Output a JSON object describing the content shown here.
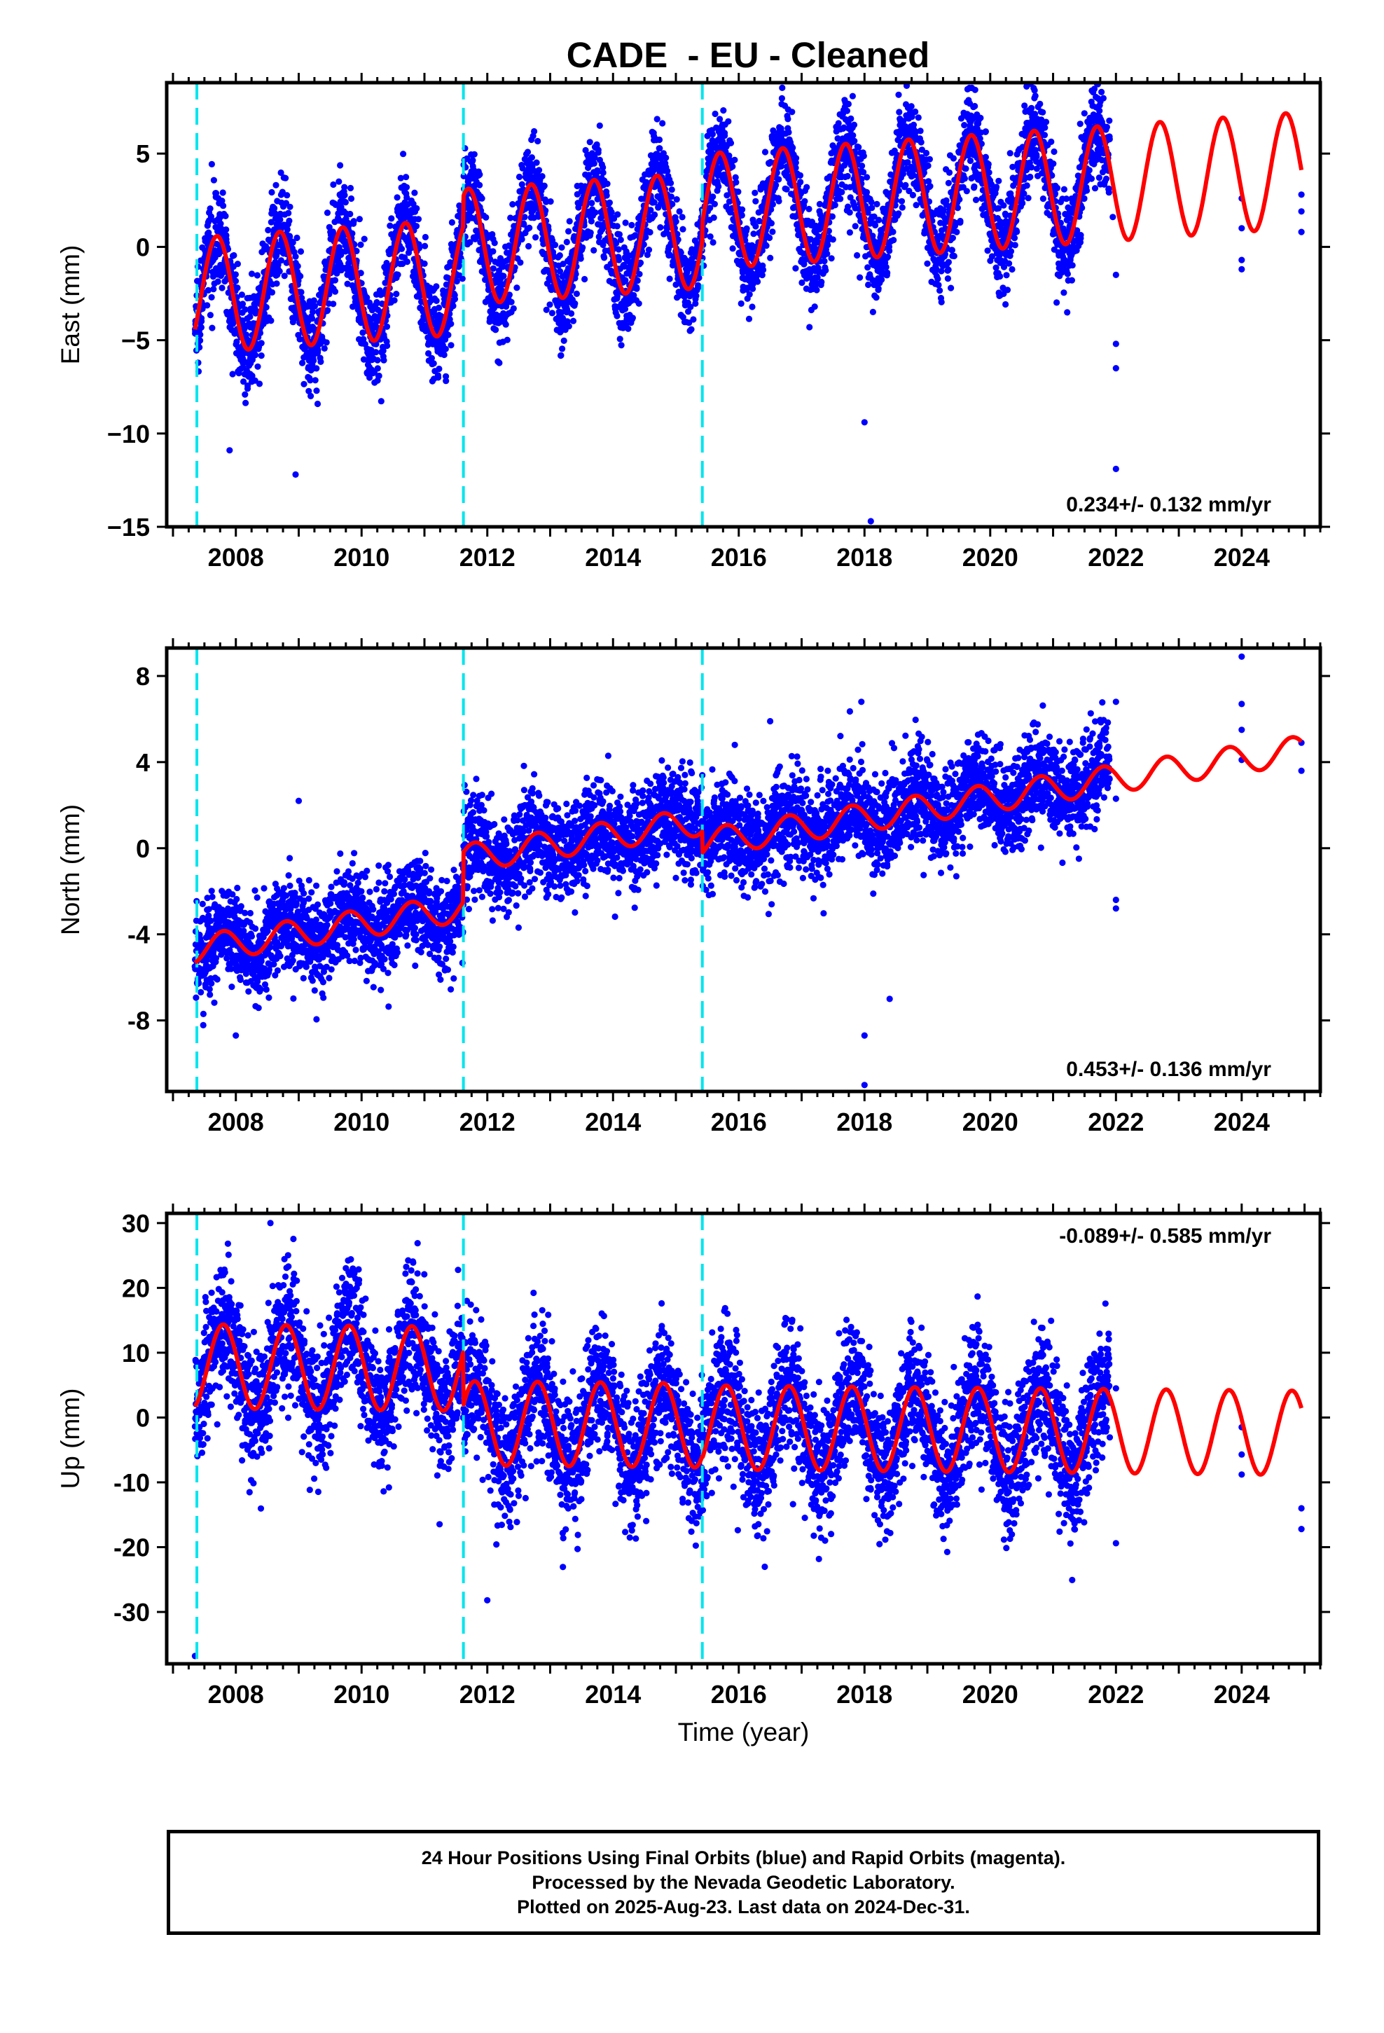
{
  "title": "CADE  - EU - Cleaned",
  "caption": {
    "line1": "24 Hour Positions Using Final Orbits (blue) and Rapid Orbits (magenta).",
    "line2": "Processed by the Nevada Geodetic Laboratory.",
    "line3": "Plotted on 2025-Aug-23. Last data on 2024-Dec-31."
  },
  "colors": {
    "data_points": "#0000ff",
    "model_fit": "#ff0000",
    "event_lines": "#00e5ee",
    "frame": "#000000"
  },
  "chart_data": [
    {
      "type": "scatter",
      "ylabel": "East (mm)",
      "xlabel": "",
      "xlim": [
        2006.9,
        2025.25
      ],
      "ylim": [
        -15,
        8.8
      ],
      "x_ticks": [
        2008,
        2010,
        2012,
        2014,
        2016,
        2018,
        2020,
        2022,
        2024
      ],
      "y_ticks": [
        5,
        0,
        -5,
        -10,
        -15
      ],
      "y_tick_labels": [
        "5",
        "0",
        "−5",
        "−10",
        "−15"
      ],
      "rate_label": "0.234+/- 0.132 mm/yr",
      "rate_label_position": "bottom-right",
      "event_lines": [
        2007.38,
        2011.62,
        2015.42
      ],
      "model": {
        "start": 2007.35,
        "end": 2024.95,
        "trend_mm_per_yr": 0.234,
        "offset_at_start": -2.6,
        "offsets": [
          {
            "t": 2011.62,
            "size": 1.6
          },
          {
            "t": 2015.42,
            "size": 1.0
          }
        ],
        "annual_amplitude": 3.1,
        "annual_phase_year": 0.45
      },
      "data": {
        "start": 2007.35,
        "end": 2021.9,
        "scatter_sd": 1.3,
        "extra_points": [
          [
            2022.0,
            -1.5
          ],
          [
            2022.0,
            -5.2
          ],
          [
            2022.0,
            -6.5
          ],
          [
            2022.0,
            -11.9
          ],
          [
            2024.0,
            2.6
          ],
          [
            2024.0,
            1.0
          ],
          [
            2024.0,
            -0.7
          ],
          [
            2024.0,
            -1.2
          ],
          [
            2024.95,
            2.8
          ],
          [
            2024.95,
            1.9
          ],
          [
            2024.95,
            0.8
          ],
          [
            2018.0,
            -9.4
          ],
          [
            2018.1,
            -14.7
          ],
          [
            2008.95,
            -12.2
          ],
          [
            2007.9,
            -10.9
          ],
          [
            2021.95,
            1.6
          ]
        ]
      },
      "legend_placement": "none",
      "grid": false
    },
    {
      "type": "scatter",
      "ylabel": "North (mm)",
      "xlabel": "",
      "xlim": [
        2006.9,
        2025.25
      ],
      "ylim": [
        -11.3,
        9.3
      ],
      "x_ticks": [
        2008,
        2010,
        2012,
        2014,
        2016,
        2018,
        2020,
        2022,
        2024
      ],
      "y_ticks": [
        8,
        4,
        0,
        -4,
        -8
      ],
      "y_tick_labels": [
        "8",
        "4",
        "0",
        "-4",
        "-8"
      ],
      "rate_label": "0.453+/- 0.136 mm/yr",
      "rate_label_position": "bottom-right",
      "event_lines": [
        2007.38,
        2011.62,
        2015.42
      ],
      "model": {
        "start": 2007.35,
        "end": 2024.95,
        "trend_mm_per_yr": 0.453,
        "offset_at_start": -4.7,
        "offsets": [
          {
            "t": 2011.62,
            "size": 2.3
          },
          {
            "t": 2015.42,
            "size": -1.0
          }
        ],
        "annual_amplitude": 0.65,
        "annual_phase_year": 0.55
      },
      "data": {
        "start": 2007.35,
        "end": 2021.9,
        "scatter_sd": 1.1,
        "extra_points": [
          [
            2022.0,
            2.3
          ],
          [
            2022.0,
            -2.4
          ],
          [
            2022.0,
            -2.8
          ],
          [
            2022.0,
            6.8
          ],
          [
            2024.0,
            8.9
          ],
          [
            2024.0,
            6.7
          ],
          [
            2024.0,
            5.5
          ],
          [
            2024.0,
            4.1
          ],
          [
            2024.95,
            4.9
          ],
          [
            2024.95,
            3.6
          ],
          [
            2018.0,
            -8.7
          ],
          [
            2018.0,
            -11.0
          ],
          [
            2018.4,
            -7.0
          ],
          [
            2016.5,
            5.9
          ],
          [
            2017.95,
            6.8
          ],
          [
            2009.0,
            2.2
          ],
          [
            2008.0,
            -8.7
          ]
        ]
      },
      "legend_placement": "none",
      "grid": false
    },
    {
      "type": "scatter",
      "ylabel": "Up (mm)",
      "xlabel": "Time (year)",
      "xlim": [
        2006.9,
        2025.25
      ],
      "ylim": [
        -38,
        31.5
      ],
      "x_ticks": [
        2008,
        2010,
        2012,
        2014,
        2016,
        2018,
        2020,
        2022,
        2024
      ],
      "y_ticks": [
        30,
        20,
        10,
        0,
        -10,
        -20,
        -30
      ],
      "y_tick_labels": [
        "30",
        "20",
        "10",
        "0",
        "-10",
        "-20",
        "-30"
      ],
      "rate_label": "-0.089+/- 0.585 mm/yr",
      "rate_label_position": "top-right",
      "event_lines": [
        2007.38,
        2011.62,
        2015.42
      ],
      "model": {
        "start": 2007.35,
        "end": 2024.95,
        "trend_mm_per_yr": -0.089,
        "offset_at_start": 7.9,
        "offsets": [
          {
            "t": 2011.62,
            "size": -8.4
          },
          {
            "t": 2015.42,
            "size": -0.3
          }
        ],
        "annual_amplitude": 6.5,
        "annual_phase_year": 0.55
      },
      "data": {
        "start": 2007.35,
        "end": 2021.9,
        "scatter_sd": 5.0,
        "extra_points": [
          [
            2007.35,
            -36.8
          ],
          [
            2008.55,
            30.0
          ],
          [
            2012.0,
            -28.2
          ],
          [
            2022.0,
            -19.4
          ],
          [
            2022.0,
            4.5
          ],
          [
            2024.0,
            -1.5
          ],
          [
            2024.0,
            -5.7
          ],
          [
            2024.0,
            -8.8
          ],
          [
            2024.95,
            -14.0
          ],
          [
            2024.95,
            -17.2
          ]
        ]
      },
      "legend_placement": "none",
      "grid": false
    }
  ]
}
